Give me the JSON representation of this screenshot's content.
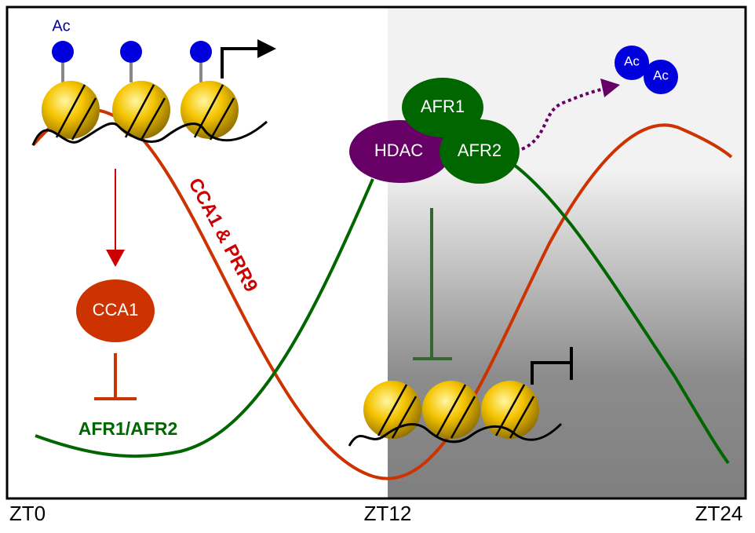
{
  "acetyl_marks": {
    "left_label": "Ac",
    "released": [
      "Ac",
      "Ac"
    ]
  },
  "nodes": {
    "cca1": "CCA1",
    "hdac": "HDAC",
    "afr1": "AFR1",
    "afr2": "AFR2"
  },
  "curves": {
    "red_label": "CCA1 & PRR9",
    "green_label": "AFR1/AFR2"
  },
  "axis": {
    "ticks": [
      "ZT0",
      "ZT12",
      "ZT24"
    ]
  }
}
